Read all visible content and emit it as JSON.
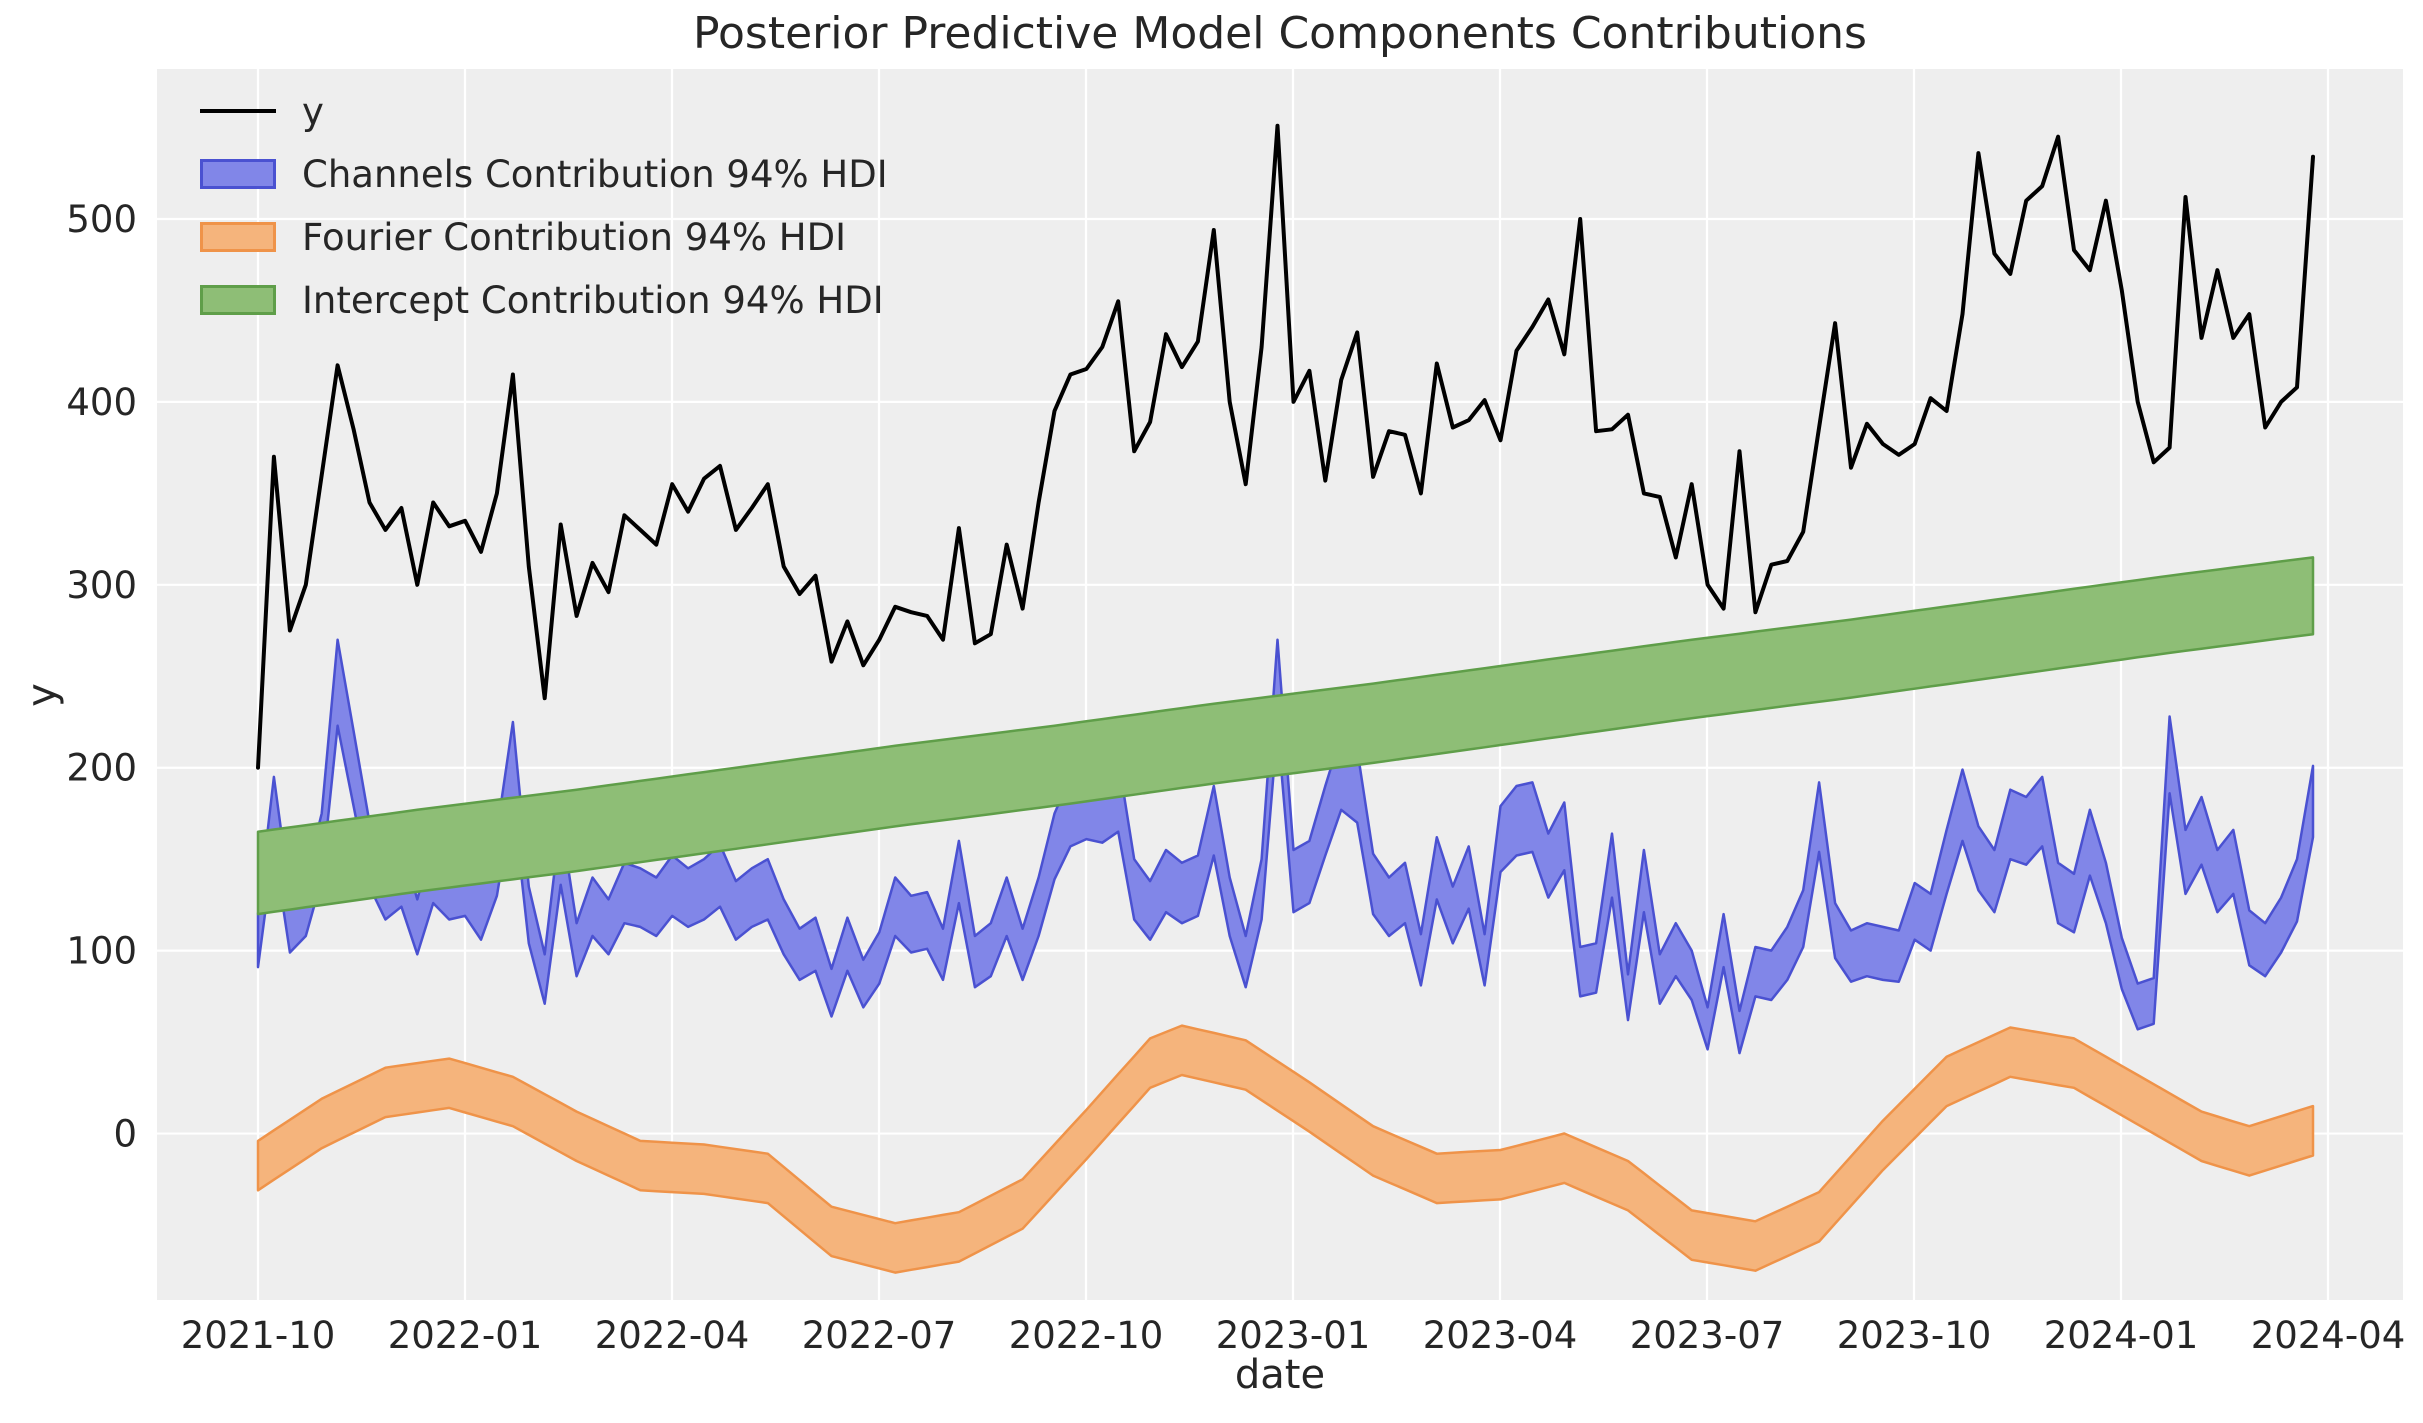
{
  "title": "Posterior Predictive Model Components Contributions",
  "xlabel": "date",
  "ylabel": "y",
  "legend": {
    "items": [
      {
        "label": "y",
        "type": "line",
        "color": "#000000"
      },
      {
        "label": "Channels Contribution 94% HDI",
        "type": "patch",
        "fill": "#8186E8",
        "edge": "#4A51D1"
      },
      {
        "label": "Fourier Contribution 94% HDI",
        "type": "patch",
        "fill": "#F5B47C",
        "edge": "#EF9349"
      },
      {
        "label": "Intercept Contribution 94% HDI",
        "type": "patch",
        "fill": "#8EBE76",
        "edge": "#5F9E49"
      }
    ]
  },
  "colors": {
    "axes_background": "#EEEEEE",
    "grid": "#FFFFFF",
    "text": "#262626",
    "y_line": "#000000",
    "channels_fill": "#8186E8",
    "channels_edge": "#4A51D1",
    "fourier_fill": "#F5B47C",
    "fourier_edge": "#EF9349",
    "intercept_fill": "#8EBE76",
    "intercept_edge": "#5F9E49"
  },
  "chart_data": {
    "type": "line",
    "title": "Posterior Predictive Model Components Contributions",
    "xlabel": "date",
    "ylabel": "y",
    "grid": true,
    "legend_position": "upper left",
    "x_start_date": "2021-10-03",
    "x_frequency": "weekly",
    "n_points": 130,
    "x_tick_labels": [
      "2021-10",
      "2022-01",
      "2022-04",
      "2022-07",
      "2022-10",
      "2023-01",
      "2023-04",
      "2023-07",
      "2023-10",
      "2024-01",
      "2024-04"
    ],
    "y_ticks": [
      0,
      100,
      200,
      300,
      400,
      500
    ],
    "ylim": [
      -91,
      582
    ],
    "series": [
      {
        "name": "y",
        "style": "line",
        "values": [
          200,
          370,
          275,
          300,
          360,
          420,
          385,
          345,
          330,
          342,
          300,
          345,
          332,
          335,
          318,
          350,
          415,
          310,
          238,
          333,
          283,
          312,
          296,
          338,
          330,
          322,
          355,
          340,
          358,
          365,
          330,
          342,
          355,
          310,
          295,
          305,
          258,
          280,
          256,
          270,
          288,
          285,
          283,
          270,
          331,
          268,
          273,
          322,
          287,
          345,
          395,
          415,
          418,
          430,
          455,
          373,
          389,
          437,
          419,
          433,
          494,
          400,
          355,
          430,
          551,
          400,
          417,
          357,
          412,
          438,
          359,
          384,
          382,
          350,
          421,
          386,
          390,
          401,
          379,
          428,
          441,
          456,
          426,
          500,
          384,
          385,
          393,
          350,
          348,
          315,
          355,
          300,
          287,
          373,
          285,
          311,
          313,
          329,
          386,
          443,
          364,
          388,
          377,
          371,
          377,
          402,
          395,
          448,
          536,
          481,
          470,
          510,
          518,
          545,
          483,
          472,
          510,
          461,
          400,
          367,
          375,
          512,
          435,
          472,
          435,
          448,
          386,
          400,
          408,
          534
        ]
      },
      {
        "name": "Channels Contribution 94% HDI",
        "style": "band",
        "upper": [
          120,
          195,
          130,
          140,
          175,
          270,
          220,
          170,
          150,
          158,
          128,
          160,
          150,
          152,
          138,
          165,
          225,
          135,
          98,
          172,
          115,
          140,
          128,
          148,
          145,
          140,
          152,
          145,
          150,
          158,
          138,
          145,
          150,
          128,
          112,
          118,
          90,
          118,
          95,
          110,
          140,
          130,
          132,
          112,
          160,
          108,
          115,
          140,
          112,
          140,
          175,
          195,
          200,
          198,
          205,
          150,
          138,
          155,
          148,
          152,
          190,
          140,
          108,
          150,
          270,
          155,
          160,
          190,
          218,
          210,
          153,
          140,
          148,
          109,
          162,
          135,
          157,
          109,
          179,
          190,
          192,
          164,
          181,
          102,
          104,
          164,
          87,
          155,
          98,
          115,
          100,
          69,
          120,
          67,
          102,
          100,
          113,
          133,
          192,
          126,
          111,
          115,
          113,
          111,
          137,
          131,
          166,
          199,
          168,
          155,
          188,
          184,
          195,
          148,
          142,
          177,
          148,
          107,
          82,
          85,
          228,
          166,
          184,
          155,
          166,
          122,
          115,
          129,
          150,
          201
        ],
        "lower": [
          91,
          157,
          99,
          108,
          139,
          223,
          179,
          135,
          117,
          124,
          98,
          126,
          117,
          119,
          106,
          130,
          183,
          104,
          71,
          136,
          86,
          108,
          98,
          115,
          113,
          108,
          119,
          113,
          117,
          124,
          106,
          113,
          117,
          98,
          84,
          89,
          64,
          89,
          69,
          82,
          108,
          99,
          101,
          84,
          126,
          80,
          86,
          108,
          84,
          108,
          139,
          157,
          161,
          159,
          165,
          117,
          106,
          121,
          115,
          119,
          152,
          108,
          80,
          117,
          223,
          121,
          126,
          152,
          177,
          170,
          120,
          108,
          115,
          81,
          128,
          104,
          123,
          81,
          143,
          152,
          154,
          129,
          144,
          75,
          77,
          129,
          62,
          121,
          71,
          86,
          73,
          46,
          91,
          44,
          75,
          73,
          84,
          102,
          154,
          96,
          83,
          86,
          84,
          83,
          106,
          100,
          131,
          160,
          133,
          121,
          150,
          147,
          157,
          115,
          110,
          141,
          115,
          79,
          57,
          60,
          186,
          131,
          147,
          121,
          131,
          92,
          86,
          99,
          116,
          162
        ]
      },
      {
        "name": "Fourier Contribution 94% HDI",
        "style": "band-control-points",
        "note": "center values at control weeks, linearly interpolated; upper=center+13, lower=center-14",
        "half_width_up": 13,
        "half_width_down": 14,
        "control_points": [
          [
            0,
            -17
          ],
          [
            4,
            6
          ],
          [
            8,
            23
          ],
          [
            12,
            28
          ],
          [
            16,
            18
          ],
          [
            20,
            -1
          ],
          [
            24,
            -17
          ],
          [
            28,
            -19
          ],
          [
            32,
            -24
          ],
          [
            36,
            -53
          ],
          [
            40,
            -62
          ],
          [
            44,
            -56
          ],
          [
            48,
            -38
          ],
          [
            52,
            0
          ],
          [
            56,
            39
          ],
          [
            58,
            46
          ],
          [
            62,
            38
          ],
          [
            66,
            15
          ],
          [
            70,
            -9
          ],
          [
            74,
            -24
          ],
          [
            78,
            -22
          ],
          [
            82,
            -13
          ],
          [
            86,
            -28
          ],
          [
            90,
            -55
          ],
          [
            94,
            -61
          ],
          [
            98,
            -45
          ],
          [
            102,
            -6
          ],
          [
            106,
            29
          ],
          [
            110,
            45
          ],
          [
            114,
            39
          ],
          [
            118,
            19
          ],
          [
            122,
            -1
          ],
          [
            125,
            -9
          ],
          [
            129,
            2
          ]
        ]
      },
      {
        "name": "Intercept Contribution 94% HDI",
        "style": "band-control-points",
        "note": "upper-edge values at control weeks, linearly interpolated; width tapers 45 to 42",
        "width_start": 45,
        "width_end": 42,
        "control_points": [
          [
            0,
            165
          ],
          [
            10,
            177
          ],
          [
            20,
            188
          ],
          [
            30,
            200
          ],
          [
            40,
            212
          ],
          [
            50,
            223
          ],
          [
            60,
            235
          ],
          [
            70,
            246
          ],
          [
            80,
            258
          ],
          [
            90,
            270
          ],
          [
            100,
            281
          ],
          [
            110,
            293
          ],
          [
            120,
            305
          ],
          [
            129,
            315
          ]
        ]
      }
    ]
  }
}
